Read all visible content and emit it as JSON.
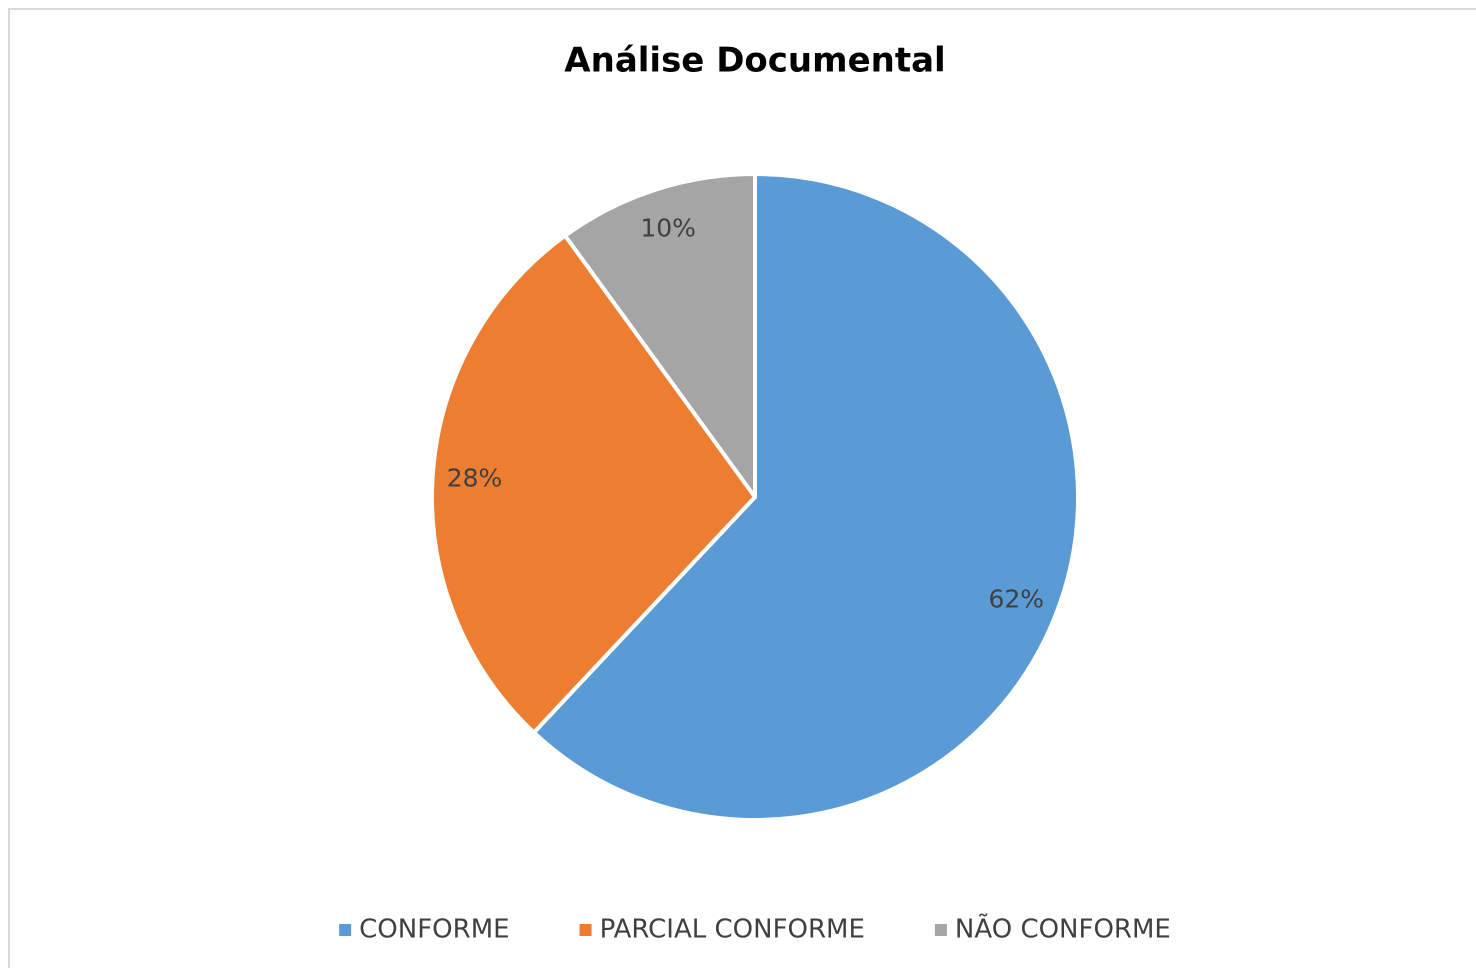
{
  "chart_data": {
    "type": "pie",
    "title": "Análise Documental",
    "categories": [
      "CONFORME",
      "PARCIAL CONFORME",
      "NÃO CONFORME"
    ],
    "values": [
      62,
      28,
      10
    ],
    "value_labels": [
      "62%",
      "28%",
      "10%"
    ],
    "colors": [
      "#5b9bd5",
      "#ed7d31",
      "#a5a5a5"
    ],
    "legend": "bottom"
  }
}
